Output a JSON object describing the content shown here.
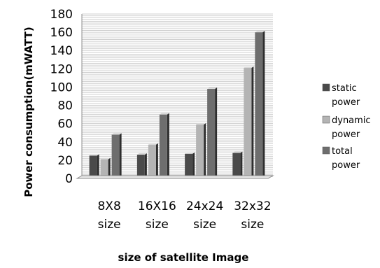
{
  "chart_data": {
    "type": "bar",
    "categories": [
      [
        "8X8",
        "size"
      ],
      [
        "16X16",
        "size"
      ],
      [
        "24x24",
        "size"
      ],
      [
        "32x32",
        "size"
      ]
    ],
    "series": [
      {
        "name": [
          "static",
          "power"
        ],
        "values": [
          25,
          26,
          27,
          28
        ],
        "color": "#4a4a4a"
      },
      {
        "name": [
          "dynamic",
          "power"
        ],
        "values": [
          21,
          37,
          59,
          121
        ],
        "color": "#b4b4b4"
      },
      {
        "name": [
          "total",
          "power"
        ],
        "values": [
          48,
          70,
          98,
          160
        ],
        "color": "#6e6e6e"
      }
    ],
    "xlabel": "size of satellite Image",
    "ylabel": "Power consumption(mWATT)",
    "ylim": [
      0,
      180
    ],
    "yticks": [
      0,
      20,
      40,
      60,
      80,
      100,
      120,
      140,
      160,
      180
    ],
    "grid": true,
    "gridline_step": 2,
    "legend_position": "right"
  }
}
